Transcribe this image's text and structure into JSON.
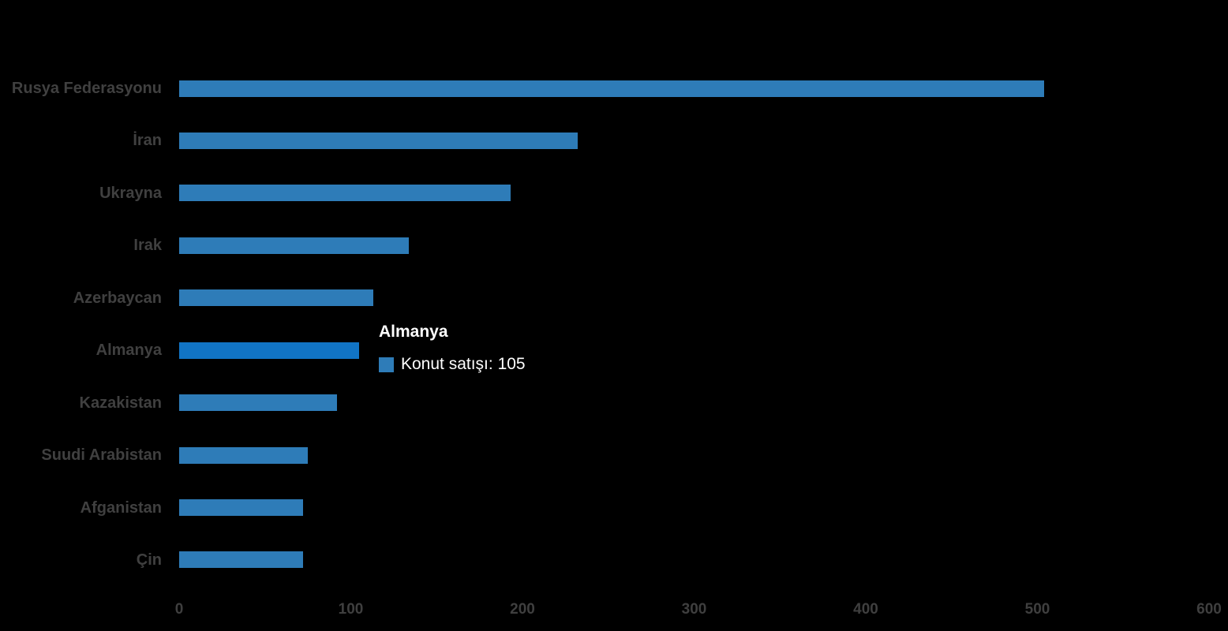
{
  "chart_data": {
    "type": "bar",
    "orientation": "horizontal",
    "title": "",
    "xlabel": "",
    "ylabel": "",
    "series_name": "Konut satışı",
    "categories": [
      "Rusya Federasyonu",
      "İran",
      "Ukrayna",
      "Irak",
      "Azerbaycan",
      "Almanya",
      "Kazakistan",
      "Suudi Arabistan",
      "Afganistan",
      "Çin"
    ],
    "values": [
      504,
      232,
      193,
      134,
      113,
      105,
      92,
      75,
      72,
      72
    ],
    "x_ticks": [
      0,
      100,
      200,
      300,
      400,
      500,
      600
    ],
    "xlim": [
      0,
      600
    ],
    "grid": false,
    "legend": "none",
    "highlight_index": 5,
    "colors": {
      "bar": "#2E7CB8",
      "bar_highlight": "#1174C5",
      "category_label": "#404040",
      "tick_label": "#3F3F3F",
      "background": "#000000"
    }
  },
  "tooltip": {
    "title": "Almanya",
    "series_text": "Konut satışı: 105",
    "text_color": "#FFFFFF",
    "swatch_color": "#2E7CB8"
  }
}
